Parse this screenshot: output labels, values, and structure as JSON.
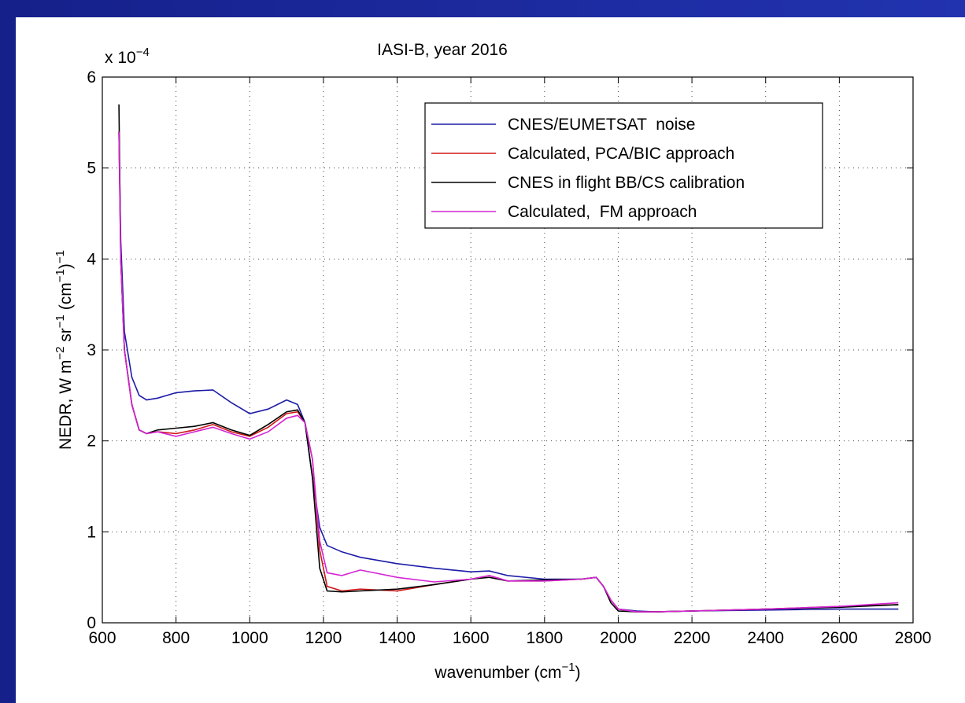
{
  "chart_data": {
    "type": "line",
    "title": "IASI-B, year 2016",
    "y_multiplier": [
      "x 10",
      "−4"
    ],
    "y_label": [
      "NEDR, W m",
      "−2",
      " sr",
      "−1",
      " (cm",
      "−1",
      ")",
      "−1"
    ],
    "x_label": [
      "wavenumber (cm",
      "−1",
      ")"
    ],
    "x": [
      645,
      650,
      660,
      680,
      700,
      720,
      750,
      800,
      850,
      900,
      950,
      1000,
      1050,
      1100,
      1130,
      1150,
      1170,
      1190,
      1210,
      1250,
      1300,
      1400,
      1500,
      1600,
      1650,
      1700,
      1800,
      1900,
      1940,
      1960,
      1980,
      2000,
      2050,
      2100,
      2200,
      2400,
      2600,
      2760
    ],
    "series": [
      {
        "name": "CNES/EUMETSAT  noise",
        "color": "#1c1ca8",
        "values": [
          5.4,
          4.2,
          3.2,
          2.7,
          2.5,
          2.45,
          2.47,
          2.53,
          2.55,
          2.56,
          2.42,
          2.3,
          2.35,
          2.45,
          2.4,
          2.2,
          1.6,
          1.05,
          0.85,
          0.78,
          0.72,
          0.65,
          0.6,
          0.56,
          0.57,
          0.52,
          0.48,
          0.48,
          0.5,
          0.4,
          0.25,
          0.15,
          0.13,
          0.12,
          0.13,
          0.14,
          0.15,
          0.15
        ]
      },
      {
        "name": "Calculated, PCA/BIC approach",
        "color": "#d01818",
        "values": [
          5.4,
          4.0,
          3.0,
          2.4,
          2.12,
          2.08,
          2.1,
          2.08,
          2.12,
          2.18,
          2.1,
          2.05,
          2.15,
          2.3,
          2.32,
          2.2,
          1.8,
          0.8,
          0.4,
          0.35,
          0.37,
          0.35,
          0.42,
          0.48,
          0.52,
          0.46,
          0.46,
          0.48,
          0.5,
          0.4,
          0.25,
          0.15,
          0.12,
          0.12,
          0.13,
          0.15,
          0.18,
          0.2
        ]
      },
      {
        "name": "CNES in flight BB/CS calibration",
        "color": "#000000",
        "values": [
          5.7,
          4.0,
          3.0,
          2.4,
          2.12,
          2.08,
          2.12,
          2.14,
          2.16,
          2.2,
          2.12,
          2.06,
          2.18,
          2.32,
          2.34,
          2.2,
          1.6,
          0.6,
          0.35,
          0.34,
          0.35,
          0.37,
          0.42,
          0.48,
          0.5,
          0.46,
          0.47,
          0.48,
          0.5,
          0.4,
          0.22,
          0.13,
          0.12,
          0.12,
          0.13,
          0.15,
          0.17,
          0.2
        ]
      },
      {
        "name": "Calculated,  FM approach",
        "color": "#d424d4",
        "values": [
          5.4,
          4.0,
          3.0,
          2.4,
          2.12,
          2.08,
          2.1,
          2.05,
          2.1,
          2.15,
          2.08,
          2.02,
          2.1,
          2.25,
          2.28,
          2.2,
          1.8,
          0.9,
          0.55,
          0.52,
          0.58,
          0.5,
          0.45,
          0.48,
          0.52,
          0.46,
          0.46,
          0.48,
          0.5,
          0.4,
          0.25,
          0.15,
          0.12,
          0.12,
          0.13,
          0.15,
          0.18,
          0.22
        ]
      }
    ],
    "xlim": [
      600,
      2800
    ],
    "xticks": [
      600,
      800,
      1000,
      1200,
      1400,
      1600,
      1800,
      2000,
      2200,
      2400,
      2600,
      2800
    ],
    "ylim": [
      0,
      6
    ],
    "yticks": [
      0,
      1,
      2,
      3,
      4,
      5,
      6
    ],
    "grid": true,
    "legend": "top-right"
  }
}
